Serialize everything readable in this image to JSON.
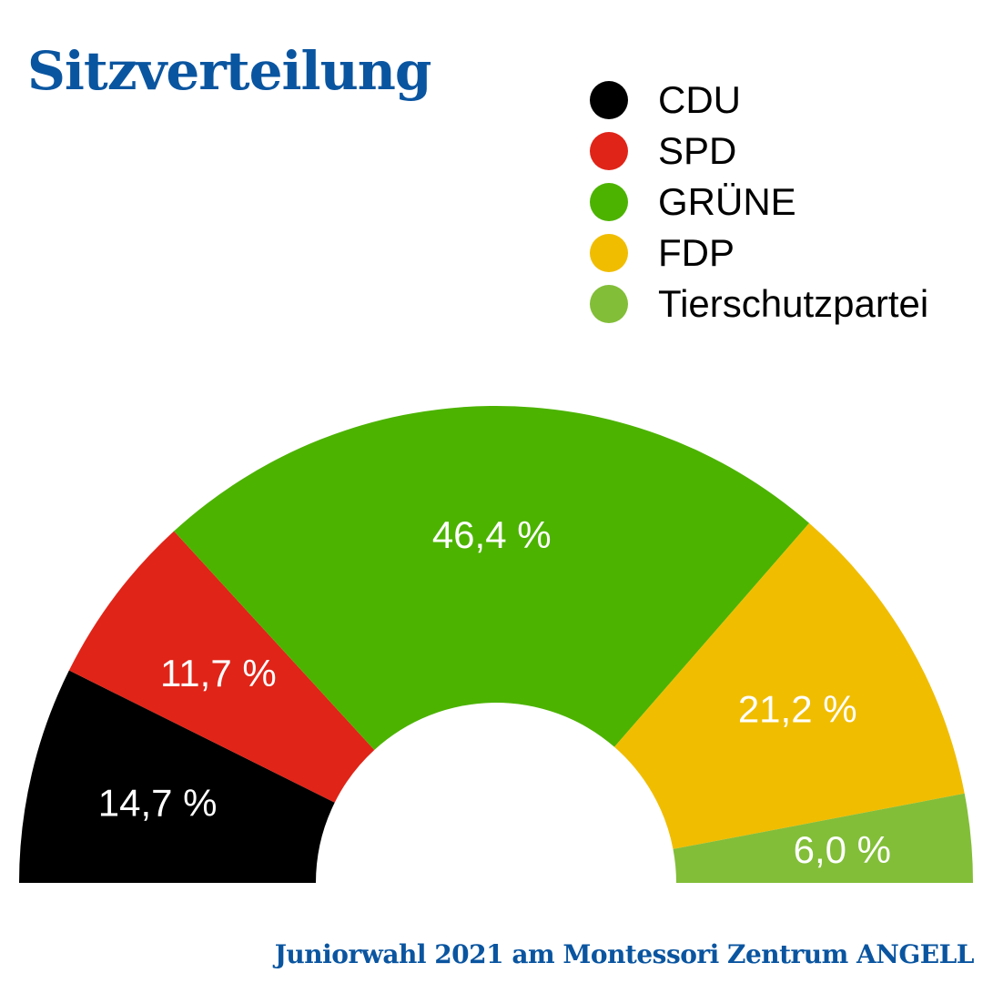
{
  "title": "Sitzverteilung",
  "footer": "Juniorwahl 2021 am Montessori Zentrum ANGELL",
  "chart_data": {
    "type": "pie",
    "subtype": "half-donut",
    "categories": [
      "CDU",
      "SPD",
      "GRÜNE",
      "FDP",
      "Tierschutzpartei"
    ],
    "values": [
      14.7,
      11.7,
      46.4,
      21.2,
      6.0
    ],
    "labels": [
      "14,7 %",
      "11,7 %",
      "46,4 %",
      "21,2 %",
      "6,0 %"
    ],
    "colors": [
      "#000000",
      "#e02418",
      "#4cb300",
      "#f0bd00",
      "#82be38"
    ],
    "legend_position": "top-right"
  }
}
